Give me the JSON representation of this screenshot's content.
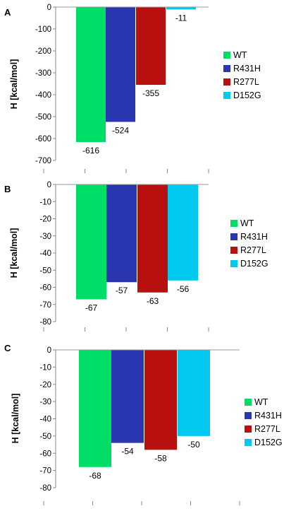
{
  "colors": {
    "WT": "#00dd66",
    "R431H": "#2a36b0",
    "R277L": "#b80f0f",
    "D152G": "#00c8ee"
  },
  "chart_data": [
    {
      "type": "bar",
      "panel": "A",
      "categories": [
        "WT",
        "R431H",
        "R277L",
        "D152G"
      ],
      "values": [
        -616,
        -524,
        -355,
        -11
      ],
      "data_labels": [
        "-616",
        "-524",
        "-355",
        "-11"
      ],
      "ylabel": "H [kcal/mol]",
      "ylim": [
        -700,
        0
      ],
      "yticks": [
        0,
        -100,
        -200,
        -300,
        -400,
        -500,
        -600,
        -700
      ],
      "legend": [
        "WT",
        "R431H",
        "R277L",
        "D152G"
      ],
      "legend_position": "right",
      "grid": false
    },
    {
      "type": "bar",
      "panel": "B",
      "categories": [
        "WT",
        "R431H",
        "R277L",
        "D152G"
      ],
      "values": [
        -67,
        -57,
        -63,
        -56
      ],
      "data_labels": [
        "-67",
        "-57",
        "-63",
        "-56"
      ],
      "ylabel": "H [kcal/mol]",
      "ylim": [
        -80,
        0
      ],
      "yticks": [
        0,
        -10,
        -20,
        -30,
        -40,
        -50,
        -60,
        -70,
        -80
      ],
      "legend": [
        "WT",
        "R431H",
        "R277L",
        "D152G"
      ],
      "legend_position": "right",
      "grid": false
    },
    {
      "type": "bar",
      "panel": "C",
      "categories": [
        "WT",
        "R431H",
        "R277L",
        "D152G"
      ],
      "values": [
        -68,
        -54,
        -58,
        -50
      ],
      "data_labels": [
        "-68",
        "-54",
        "-58",
        "-50"
      ],
      "ylabel": "H [kcal/mol]",
      "ylim": [
        -80,
        0
      ],
      "yticks": [
        0,
        -10,
        -20,
        -30,
        -40,
        -50,
        -60,
        -70,
        -80
      ],
      "legend": [
        "WT",
        "R431H",
        "R277L",
        "D152G"
      ],
      "legend_position": "right",
      "grid": false
    }
  ]
}
